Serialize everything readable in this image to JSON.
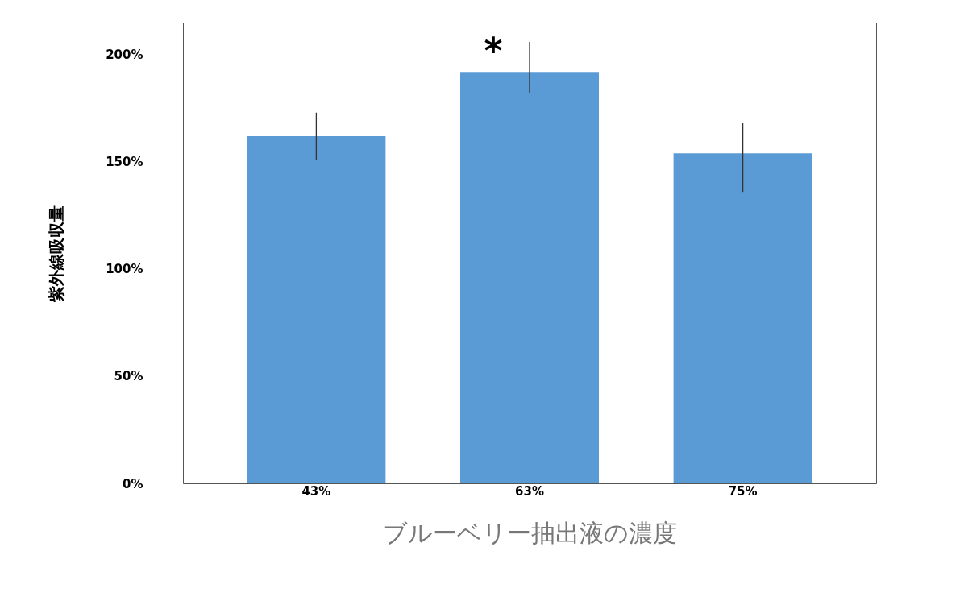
{
  "chart_data": {
    "type": "bar",
    "xlabel": "ブルーベリー抽出液の濃度",
    "ylabel": "紫外線吸収量",
    "categories": [
      "43%",
      "63%",
      "75%"
    ],
    "values": [
      162,
      192,
      154
    ],
    "color": "#5b9bd5",
    "errors": [
      [
        151,
        173
      ],
      [
        182,
        206
      ],
      [
        136,
        168
      ]
    ],
    "ylim": [
      0,
      215
    ],
    "yticks": [
      {
        "value": 0,
        "label": "0%"
      },
      {
        "value": 50,
        "label": "50%"
      },
      {
        "value": 100,
        "label": "100%"
      },
      {
        "value": 150,
        "label": "150%"
      },
      {
        "value": 200,
        "label": "200%"
      }
    ],
    "annotations": [
      {
        "text": "*",
        "x": "63%",
        "y": 201
      }
    ],
    "grid": false
  }
}
